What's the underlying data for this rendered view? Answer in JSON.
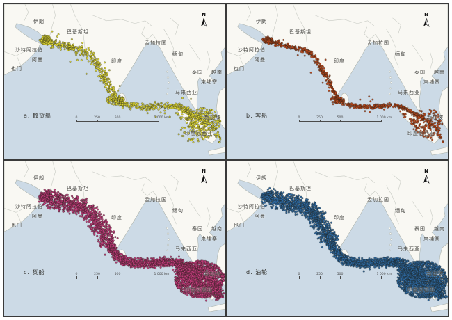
{
  "figure": {
    "title_hidden": "",
    "north_label": "N",
    "sea_color": "#ccdae6",
    "land_color": "#f9f8f3",
    "land_border_color": "#aeb4ad",
    "scalebar_ticks": [
      "0",
      "250",
      "500",
      "1 000 km"
    ],
    "panels": [
      {
        "id": "a",
        "label": "a. 散货船",
        "ship_type": "bulk-carrier",
        "dot_color": "#e1da35"
      },
      {
        "id": "b",
        "label": "b. 客船",
        "ship_type": "passenger-ship",
        "dot_color": "#c04a1d"
      },
      {
        "id": "c",
        "label": "c. 货船",
        "ship_type": "cargo-ship",
        "dot_color": "#c23c7c"
      },
      {
        "id": "d",
        "label": "d. 油轮",
        "ship_type": "oil-tanker",
        "dot_color": "#2e6aa3"
      }
    ],
    "map_labels": [
      {
        "id": "iran",
        "text": "伊朗"
      },
      {
        "id": "pakistan",
        "text": "巴基斯坦"
      },
      {
        "id": "saudi-arabia",
        "text": "沙特阿拉伯"
      },
      {
        "id": "oman",
        "text": "阿曼"
      },
      {
        "id": "yemen",
        "text": "也门"
      },
      {
        "id": "india",
        "text": "印度"
      },
      {
        "id": "bangladesh",
        "text": "孟加拉国"
      },
      {
        "id": "myanmar",
        "text": "缅甸"
      },
      {
        "id": "thailand",
        "text": "泰国"
      },
      {
        "id": "vietnam",
        "text": "越南"
      },
      {
        "id": "cambodia",
        "text": "柬埔寨"
      },
      {
        "id": "malaysia",
        "text": "马来西亚"
      },
      {
        "id": "singapore",
        "text": "新加坡"
      },
      {
        "id": "indonesia",
        "text": "印度尼西亚"
      }
    ]
  }
}
